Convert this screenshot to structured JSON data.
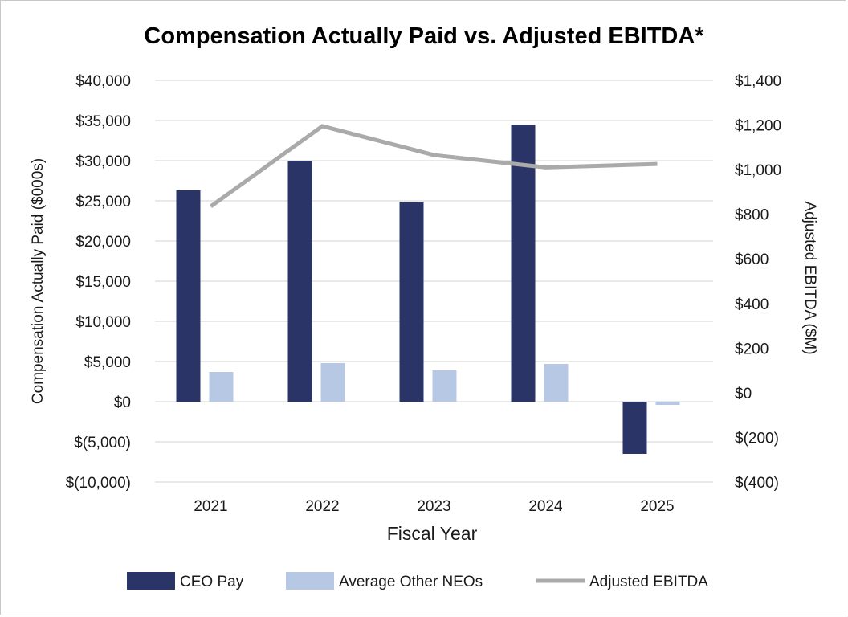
{
  "chart_data": {
    "type": "bar",
    "title": "Compensation Actually Paid vs. Adjusted EBITDA*",
    "xlabel": "Fiscal Year",
    "ylabel": "Compensation Actually Paid ($000s)",
    "y2label": "Adjusted EBITDA ($M)",
    "categories": [
      "2021",
      "2022",
      "2023",
      "2024",
      "2025"
    ],
    "ylim": [
      -10000,
      40000
    ],
    "y2lim": [
      -400,
      1400
    ],
    "yticks": [
      40000,
      35000,
      30000,
      25000,
      20000,
      15000,
      10000,
      5000,
      0,
      -5000,
      -10000
    ],
    "ytick_labels": [
      "$40,000",
      "$35,000",
      "$30,000",
      "$25,000",
      "$20,000",
      "$15,000",
      "$10,000",
      "$5,000",
      "$0",
      "$(5,000)",
      "$(10,000)"
    ],
    "y2ticks": [
      1400,
      1200,
      1000,
      800,
      600,
      400,
      200,
      0,
      -200,
      -400
    ],
    "y2tick_labels": [
      "$1,400",
      "$1,200",
      "$1,000",
      "$800",
      "$600",
      "$400",
      "$200",
      "$0",
      "$(200)",
      "$(400)"
    ],
    "series": [
      {
        "name": "CEO Pay",
        "kind": "bar",
        "axis": "left",
        "color": "#2b3467",
        "values": [
          26300,
          30000,
          24800,
          34500,
          -6500
        ]
      },
      {
        "name": "Average Other NEOs",
        "kind": "bar",
        "axis": "left",
        "color": "#b6c8e4",
        "values": [
          3700,
          4800,
          3900,
          4700,
          -400
        ]
      },
      {
        "name": "Adjusted EBITDA",
        "kind": "line",
        "axis": "right",
        "color": "#aaaaaa",
        "values": [
          835,
          1195,
          1065,
          1010,
          1025
        ]
      }
    ],
    "grid": true,
    "legend_position": "bottom"
  }
}
